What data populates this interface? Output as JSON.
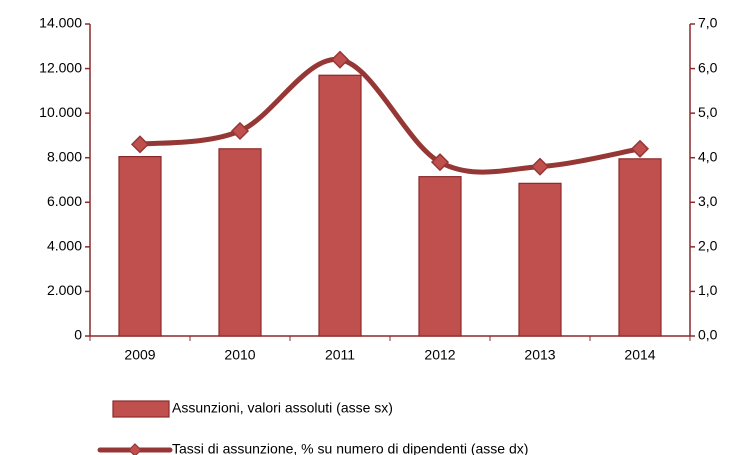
{
  "chart_data": {
    "type": "bar+line",
    "categories": [
      "2009",
      "2010",
      "2011",
      "2012",
      "2013",
      "2014"
    ],
    "series": [
      {
        "name": "Assunzioni, valori assoluti (asse sx)",
        "type": "bar",
        "color": "#c0504d",
        "values": [
          8050,
          8400,
          11700,
          7150,
          6850,
          7950
        ]
      },
      {
        "name": "Tassi di assunzione, % su numero di dipendenti (asse dx)",
        "type": "line",
        "axis": "y2",
        "color": "#953735",
        "values": [
          4.3,
          4.6,
          6.2,
          3.9,
          3.8,
          4.2
        ]
      }
    ],
    "ylim": [
      0,
      14000
    ],
    "yticks": [
      0,
      {
        "value": 2000,
        "label": "2.000"
      },
      {
        "value": 4000,
        "label": "4.000"
      },
      {
        "value": 6000,
        "label": "6.000"
      },
      {
        "value": 8000,
        "label": "8.000"
      },
      {
        "value": 10000,
        "label": "10.000"
      },
      {
        "value": 12000,
        "label": "12.000"
      },
      {
        "value": 14000,
        "label": "14.000"
      }
    ],
    "y2lim": [
      0,
      7
    ],
    "y2ticks": [
      {
        "value": 0,
        "label": "0,0"
      },
      {
        "value": 1,
        "label": "1,0"
      },
      {
        "value": 2,
        "label": "2,0"
      },
      {
        "value": 3,
        "label": "3,0"
      },
      {
        "value": 4,
        "label": "4,0"
      },
      {
        "value": 5,
        "label": "5,0"
      },
      {
        "value": 6,
        "label": "6,0"
      },
      {
        "value": 7,
        "label": "7,0"
      }
    ],
    "grid": false,
    "legend": "bottom"
  }
}
